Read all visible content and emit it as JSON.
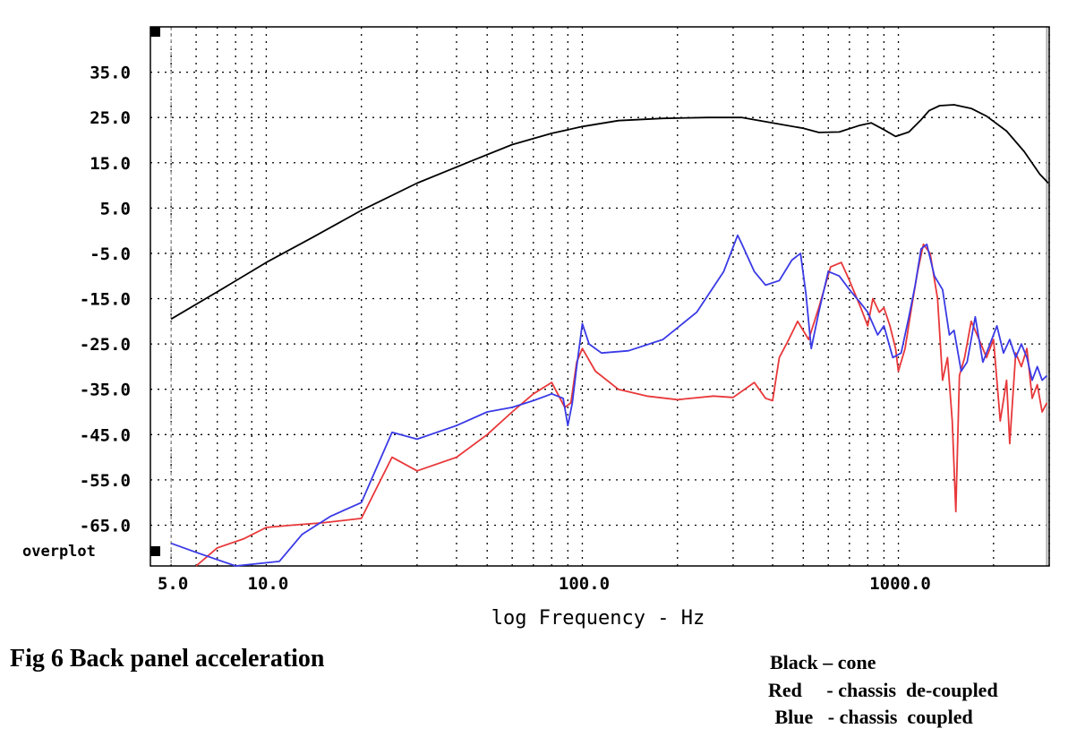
{
  "caption": "Fig 6   Back panel acceleration",
  "legend": [
    {
      "text": "Black – cone",
      "color": "#000000"
    },
    {
      "text": "Red     - chassis  de-coupled",
      "color": "#e8383a"
    },
    {
      "text": " Blue   - chassis  coupled",
      "color": "#3a3ae6"
    }
  ],
  "chart_data": {
    "type": "line",
    "xlabel": "log Frequency - Hz",
    "ylabel": "",
    "x_scale": "log",
    "xlim": [
      4.3,
      3000
    ],
    "ylim": [
      -74,
      45
    ],
    "grid": true,
    "x_tick_labels": [
      {
        "value": 5,
        "label": "5.0"
      },
      {
        "value": 10,
        "label": "10.0"
      },
      {
        "value": 100,
        "label": "100.0"
      },
      {
        "value": 1000,
        "label": "1000.0"
      }
    ],
    "y_tick_labels": [
      {
        "value": 35,
        "label": "35.0"
      },
      {
        "value": 25,
        "label": "25.0"
      },
      {
        "value": 15,
        "label": "15.0"
      },
      {
        "value": 5,
        "label": "5.0"
      },
      {
        "value": -5,
        "label": "-5.0"
      },
      {
        "value": -15,
        "label": "-15.0"
      },
      {
        "value": -25,
        "label": "-25.0"
      },
      {
        "value": -35,
        "label": "-35.0"
      },
      {
        "value": -45,
        "label": "-45.0"
      },
      {
        "value": -55,
        "label": "-55.0"
      },
      {
        "value": -65,
        "label": "-65.0"
      }
    ],
    "overplot_label": "overplot",
    "series": [
      {
        "color": "#000000",
        "points": [
          [
            5,
            -19.5
          ],
          [
            7,
            -13.5
          ],
          [
            10,
            -7
          ],
          [
            14,
            -1.5
          ],
          [
            20,
            4.5
          ],
          [
            30,
            10.5
          ],
          [
            45,
            15.5
          ],
          [
            60,
            19
          ],
          [
            80,
            21.5
          ],
          [
            100,
            23
          ],
          [
            130,
            24.3
          ],
          [
            180,
            24.8
          ],
          [
            250,
            25
          ],
          [
            320,
            25
          ],
          [
            400,
            23.8
          ],
          [
            500,
            22.6
          ],
          [
            560,
            21.7
          ],
          [
            650,
            21.8
          ],
          [
            750,
            23.2
          ],
          [
            820,
            23.8
          ],
          [
            900,
            22.3
          ],
          [
            980,
            20.8
          ],
          [
            1080,
            21.8
          ],
          [
            1180,
            24.5
          ],
          [
            1250,
            26.5
          ],
          [
            1350,
            27.6
          ],
          [
            1500,
            27.8
          ],
          [
            1700,
            27
          ],
          [
            1900,
            25.3
          ],
          [
            2200,
            22
          ],
          [
            2500,
            17.5
          ],
          [
            2800,
            12.5
          ],
          [
            2980,
            10.5
          ]
        ]
      },
      {
        "color": "#e8383a",
        "points": [
          [
            6,
            -74
          ],
          [
            7,
            -70
          ],
          [
            8.5,
            -68
          ],
          [
            10,
            -65.5
          ],
          [
            12,
            -65
          ],
          [
            15,
            -64.5
          ],
          [
            20,
            -63.5
          ],
          [
            25,
            -50
          ],
          [
            30,
            -53
          ],
          [
            40,
            -50
          ],
          [
            50,
            -45
          ],
          [
            60,
            -40
          ],
          [
            70,
            -36
          ],
          [
            80,
            -33.5
          ],
          [
            88,
            -39
          ],
          [
            92,
            -38
          ],
          [
            96,
            -29
          ],
          [
            100,
            -26
          ],
          [
            110,
            -31
          ],
          [
            130,
            -35
          ],
          [
            160,
            -36.5
          ],
          [
            200,
            -37.3
          ],
          [
            260,
            -36.5
          ],
          [
            300,
            -36.8
          ],
          [
            350,
            -33.5
          ],
          [
            380,
            -37
          ],
          [
            400,
            -37.5
          ],
          [
            420,
            -28
          ],
          [
            450,
            -24
          ],
          [
            480,
            -20
          ],
          [
            520,
            -24
          ],
          [
            560,
            -17
          ],
          [
            610,
            -8
          ],
          [
            660,
            -7
          ],
          [
            700,
            -11
          ],
          [
            760,
            -17
          ],
          [
            800,
            -21
          ],
          [
            830,
            -15
          ],
          [
            870,
            -18
          ],
          [
            900,
            -17
          ],
          [
            940,
            -21
          ],
          [
            980,
            -26
          ],
          [
            1000,
            -31
          ],
          [
            1050,
            -26
          ],
          [
            1100,
            -17
          ],
          [
            1150,
            -9
          ],
          [
            1200,
            -3
          ],
          [
            1260,
            -5
          ],
          [
            1330,
            -15
          ],
          [
            1380,
            -33
          ],
          [
            1430,
            -28
          ],
          [
            1480,
            -42
          ],
          [
            1520,
            -62
          ],
          [
            1560,
            -32
          ],
          [
            1620,
            -28
          ],
          [
            1700,
            -20
          ],
          [
            1800,
            -24
          ],
          [
            1900,
            -28
          ],
          [
            2000,
            -24
          ],
          [
            2100,
            -42
          ],
          [
            2200,
            -33
          ],
          [
            2250,
            -47
          ],
          [
            2350,
            -27
          ],
          [
            2450,
            -30
          ],
          [
            2550,
            -26
          ],
          [
            2650,
            -37
          ],
          [
            2750,
            -34
          ],
          [
            2850,
            -40
          ],
          [
            2950,
            -38
          ]
        ]
      },
      {
        "color": "#3a3ae6",
        "points": [
          [
            5,
            -69
          ],
          [
            6,
            -71
          ],
          [
            8,
            -74
          ],
          [
            11,
            -73
          ],
          [
            13,
            -67
          ],
          [
            16,
            -63
          ],
          [
            20,
            -60
          ],
          [
            25,
            -44.5
          ],
          [
            30,
            -46
          ],
          [
            40,
            -43
          ],
          [
            50,
            -40
          ],
          [
            60,
            -39
          ],
          [
            70,
            -37.5
          ],
          [
            80,
            -36
          ],
          [
            87,
            -37
          ],
          [
            90,
            -43
          ],
          [
            93,
            -38
          ],
          [
            96,
            -30
          ],
          [
            100,
            -20.5
          ],
          [
            105,
            -25
          ],
          [
            115,
            -27
          ],
          [
            140,
            -26.5
          ],
          [
            180,
            -24
          ],
          [
            230,
            -18
          ],
          [
            280,
            -9
          ],
          [
            310,
            -1
          ],
          [
            320,
            -3
          ],
          [
            350,
            -9
          ],
          [
            380,
            -12
          ],
          [
            420,
            -11
          ],
          [
            460,
            -6.5
          ],
          [
            490,
            -5
          ],
          [
            510,
            -14
          ],
          [
            530,
            -26
          ],
          [
            560,
            -18
          ],
          [
            600,
            -9
          ],
          [
            650,
            -10
          ],
          [
            700,
            -13
          ],
          [
            760,
            -16
          ],
          [
            800,
            -18
          ],
          [
            860,
            -23
          ],
          [
            900,
            -21
          ],
          [
            960,
            -28
          ],
          [
            1020,
            -27
          ],
          [
            1080,
            -19
          ],
          [
            1130,
            -12
          ],
          [
            1180,
            -4
          ],
          [
            1230,
            -3
          ],
          [
            1300,
            -10
          ],
          [
            1380,
            -13
          ],
          [
            1450,
            -23
          ],
          [
            1500,
            -22
          ],
          [
            1580,
            -31
          ],
          [
            1650,
            -29
          ],
          [
            1750,
            -19
          ],
          [
            1850,
            -29
          ],
          [
            1950,
            -25
          ],
          [
            2050,
            -21
          ],
          [
            2150,
            -27
          ],
          [
            2250,
            -24
          ],
          [
            2350,
            -28
          ],
          [
            2450,
            -25
          ],
          [
            2550,
            -28
          ],
          [
            2650,
            -33
          ],
          [
            2750,
            -30
          ],
          [
            2850,
            -33
          ],
          [
            2950,
            -32
          ]
        ]
      }
    ]
  }
}
